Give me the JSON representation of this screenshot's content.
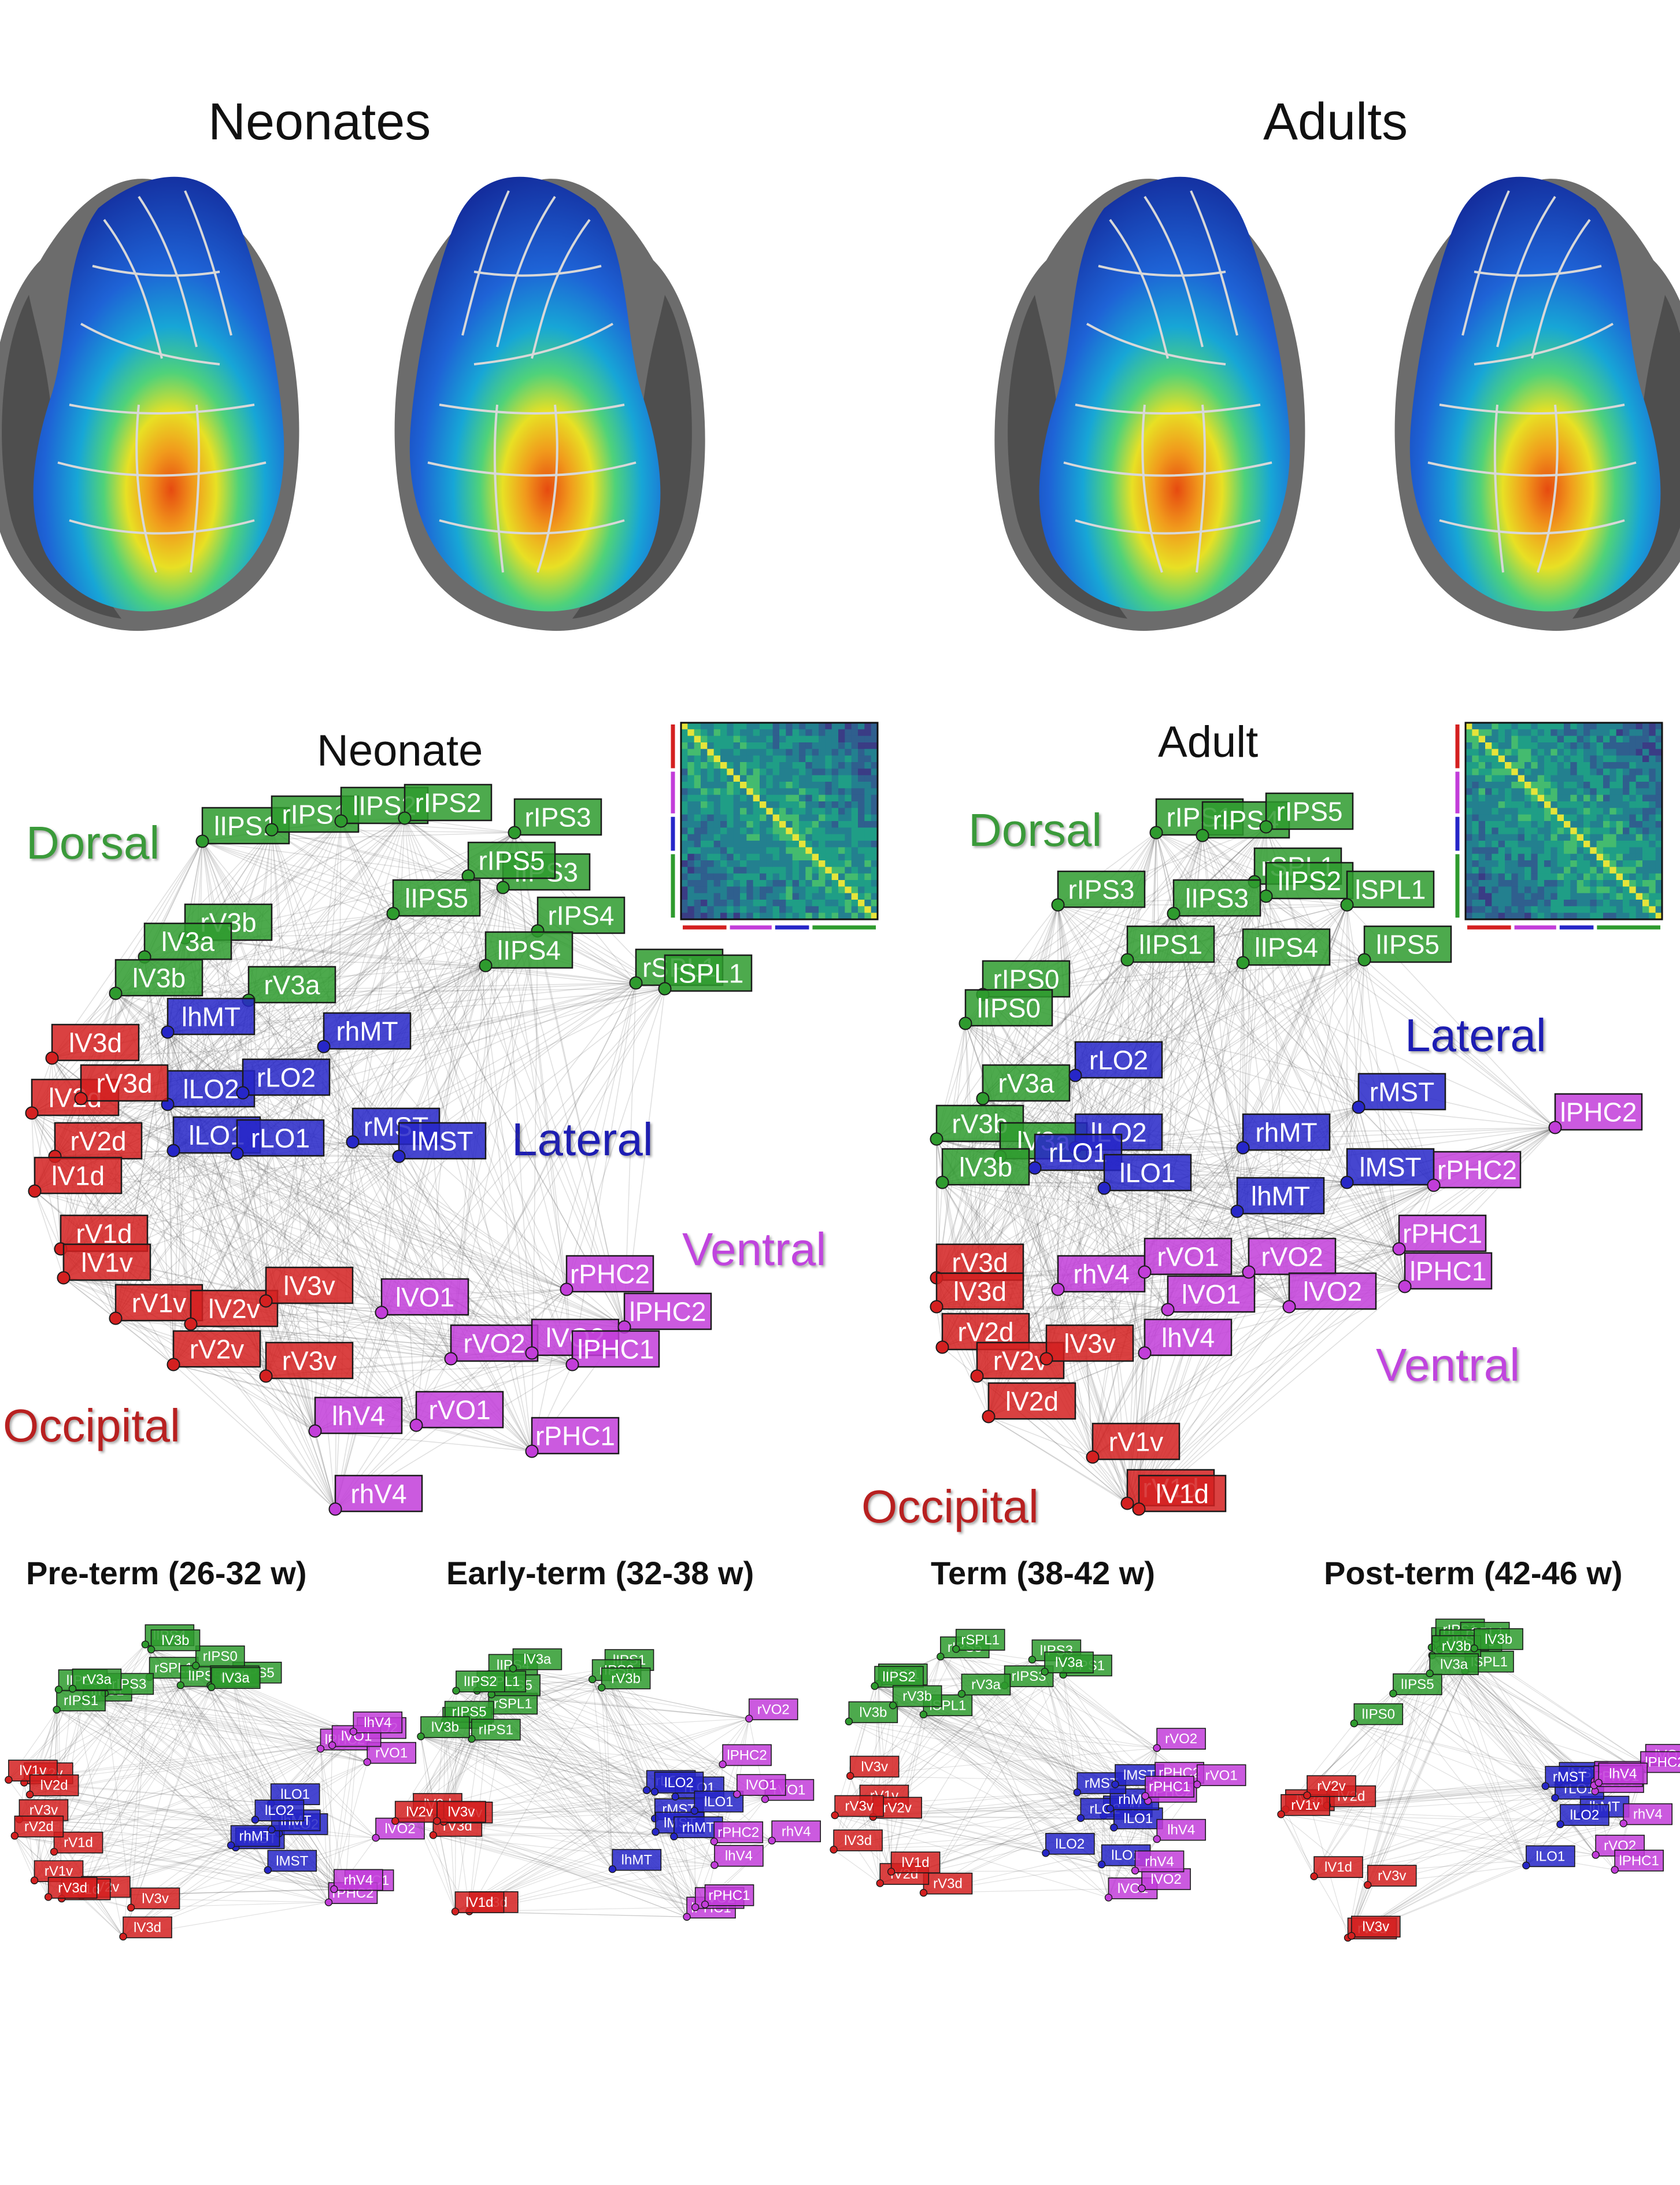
{
  "brains": {
    "neonates_title": "Neonates",
    "adults_title": "Adults"
  },
  "colors": {
    "Dorsal": "#2e9b2e",
    "Lateral": "#2626c8",
    "Ventral": "#c23dd9",
    "Occipital": "#d42020"
  },
  "networks": {
    "neonate": {
      "title": "Neonate",
      "group_labels": {
        "dorsal": "Dorsal",
        "lateral": "Lateral",
        "ventral": "Ventral",
        "occipital": "Occipital"
      },
      "nodes": [
        {
          "label": "lIPS1",
          "group": "Dorsal"
        },
        {
          "label": "rIPS1",
          "group": "Dorsal"
        },
        {
          "label": "lIPS2",
          "group": "Dorsal"
        },
        {
          "label": "rIPS2",
          "group": "Dorsal"
        },
        {
          "label": "rIPS3",
          "group": "Dorsal"
        },
        {
          "label": "lIPS3",
          "group": "Dorsal"
        },
        {
          "label": "rIPS5",
          "group": "Dorsal"
        },
        {
          "label": "lIPS5",
          "group": "Dorsal"
        },
        {
          "label": "rIPS4",
          "group": "Dorsal"
        },
        {
          "label": "lIPS4",
          "group": "Dorsal"
        },
        {
          "label": "rSPL1",
          "group": "Dorsal"
        },
        {
          "label": "lSPL1",
          "group": "Dorsal"
        },
        {
          "label": "rV3b",
          "group": "Dorsal"
        },
        {
          "label": "lV3a",
          "group": "Dorsal"
        },
        {
          "label": "lV3b",
          "group": "Dorsal"
        },
        {
          "label": "rV3a",
          "group": "Dorsal"
        },
        {
          "label": "lhMT",
          "group": "Lateral"
        },
        {
          "label": "rhMT",
          "group": "Lateral"
        },
        {
          "label": "lLO2",
          "group": "Lateral"
        },
        {
          "label": "rLO2",
          "group": "Lateral"
        },
        {
          "label": "lLO1",
          "group": "Lateral"
        },
        {
          "label": "rLO1",
          "group": "Lateral"
        },
        {
          "label": "rMST",
          "group": "Lateral"
        },
        {
          "label": "lMST",
          "group": "Lateral"
        },
        {
          "label": "lV3d",
          "group": "Occipital"
        },
        {
          "label": "lV2d",
          "group": "Occipital"
        },
        {
          "label": "rV3d",
          "group": "Occipital"
        },
        {
          "label": "rV2d",
          "group": "Occipital"
        },
        {
          "label": "lV1d",
          "group": "Occipital"
        },
        {
          "label": "rV1d",
          "group": "Occipital"
        },
        {
          "label": "lV1v",
          "group": "Occipital"
        },
        {
          "label": "rV1v",
          "group": "Occipital"
        },
        {
          "label": "lV2v",
          "group": "Occipital"
        },
        {
          "label": "rV2v",
          "group": "Occipital"
        },
        {
          "label": "lV3v",
          "group": "Occipital"
        },
        {
          "label": "rV3v",
          "group": "Occipital"
        },
        {
          "label": "lVO1",
          "group": "Ventral"
        },
        {
          "label": "rVO2",
          "group": "Ventral"
        },
        {
          "label": "lVO2",
          "group": "Ventral"
        },
        {
          "label": "rPHC2",
          "group": "Ventral"
        },
        {
          "label": "lPHC2",
          "group": "Ventral"
        },
        {
          "label": "lPHC1",
          "group": "Ventral"
        },
        {
          "label": "lhV4",
          "group": "Ventral"
        },
        {
          "label": "rVO1",
          "group": "Ventral"
        },
        {
          "label": "rPHC1",
          "group": "Ventral"
        },
        {
          "label": "rhV4",
          "group": "Ventral"
        }
      ]
    },
    "adult": {
      "title": "Adult",
      "group_labels": {
        "dorsal": "Dorsal",
        "lateral": "Lateral",
        "ventral": "Ventral",
        "occipital": "Occipital"
      },
      "nodes": [
        {
          "label": "rIPS1",
          "group": "Dorsal"
        },
        {
          "label": "rIPS4",
          "group": "Dorsal"
        },
        {
          "label": "rIPS5",
          "group": "Dorsal"
        },
        {
          "label": "rSPL1",
          "group": "Dorsal"
        },
        {
          "label": "lIPS2",
          "group": "Dorsal"
        },
        {
          "label": "lSPL1",
          "group": "Dorsal"
        },
        {
          "label": "rIPS3",
          "group": "Dorsal"
        },
        {
          "label": "lIPS3",
          "group": "Dorsal"
        },
        {
          "label": "lIPS1",
          "group": "Dorsal"
        },
        {
          "label": "lIPS4",
          "group": "Dorsal"
        },
        {
          "label": "lIPS5",
          "group": "Dorsal"
        },
        {
          "label": "rIPS0",
          "group": "Dorsal"
        },
        {
          "label": "lIPS0",
          "group": "Dorsal"
        },
        {
          "label": "rV3a",
          "group": "Dorsal"
        },
        {
          "label": "rV3b",
          "group": "Dorsal"
        },
        {
          "label": "lV3a",
          "group": "Dorsal"
        },
        {
          "label": "lV3b",
          "group": "Dorsal"
        },
        {
          "label": "rLO2",
          "group": "Lateral"
        },
        {
          "label": "rMST",
          "group": "Lateral"
        },
        {
          "label": "lLO2",
          "group": "Lateral"
        },
        {
          "label": "rLO1",
          "group": "Lateral"
        },
        {
          "label": "lLO1",
          "group": "Lateral"
        },
        {
          "label": "rhMT",
          "group": "Lateral"
        },
        {
          "label": "lMST",
          "group": "Lateral"
        },
        {
          "label": "lhMT",
          "group": "Lateral"
        },
        {
          "label": "rV3d",
          "group": "Occipital"
        },
        {
          "label": "lV3d",
          "group": "Occipital"
        },
        {
          "label": "rV2d",
          "group": "Occipital"
        },
        {
          "label": "rV2v",
          "group": "Occipital"
        },
        {
          "label": "lV3v",
          "group": "Occipital"
        },
        {
          "label": "lV2d",
          "group": "Occipital"
        },
        {
          "label": "rV1v",
          "group": "Occipital"
        },
        {
          "label": "rV1d",
          "group": "Occipital"
        },
        {
          "label": "lV1d",
          "group": "Occipital"
        },
        {
          "label": "rhV4",
          "group": "Ventral"
        },
        {
          "label": "rVO1",
          "group": "Ventral"
        },
        {
          "label": "lVO1",
          "group": "Ventral"
        },
        {
          "label": "rVO2",
          "group": "Ventral"
        },
        {
          "label": "lVO2",
          "group": "Ventral"
        },
        {
          "label": "lhV4",
          "group": "Ventral"
        },
        {
          "label": "rPHC1",
          "group": "Ventral"
        },
        {
          "label": "lPHC1",
          "group": "Ventral"
        },
        {
          "label": "rPHC2",
          "group": "Ventral"
        },
        {
          "label": "lPHC2",
          "group": "Ventral"
        }
      ]
    }
  },
  "age_groups": [
    {
      "label": "Pre-term (26-32 w)",
      "nodes": [
        "rSPL1",
        "lIPS1",
        "rIPS5",
        "lIPS4",
        "rIPS3",
        "lIPS5",
        "rIPS1",
        "rIPS0",
        "lIPS0",
        "lV3b",
        "rV3b",
        "lV3a",
        "rV3a",
        "rV2v",
        "lV1v",
        "rV1v",
        "lV2v",
        "rV3v",
        "rV1d",
        "lV1d",
        "rV2d",
        "lV2d",
        "rV3d",
        "lV3d",
        "lMST",
        "rMST",
        "lLO1",
        "rLO2",
        "rhMT",
        "lhMT",
        "lLO2",
        "lPHC1",
        "lPHC2",
        "rPHC2",
        "rVO2",
        "lVO2",
        "rVO1",
        "lVO1",
        "lV3v",
        "rhV4",
        "lhV4"
      ]
    },
    {
      "label": "Early-term (32-38 w)",
      "nodes": [
        "lIPS4",
        "rSPL1",
        "lIPS5",
        "rIPS4",
        "lSPL1",
        "lIPS1",
        "rIPS5",
        "rIPS1",
        "lIPS2",
        "rIPS0",
        "lV3b",
        "rV3b",
        "lV3a",
        "rMST",
        "lhMT",
        "lMST",
        "rhMT",
        "rLO2",
        "rLO1",
        "rV3d",
        "lV3d",
        "lV2d",
        "lV1d",
        "lLO2",
        "lV2v",
        "rV3v",
        "lV3v",
        "rVO1",
        "lLO1",
        "rPHC2",
        "lPHC1",
        "lPHC2",
        "rVO2",
        "lVO2",
        "rPHC1",
        "lVO1",
        "rhV4",
        "lhV4"
      ]
    },
    {
      "label": "Term (38-42 w)",
      "nodes": [
        "lIPS3",
        "rIPS3",
        "lIPS1",
        "rIPS1",
        "lIPS2",
        "rIPS5",
        "rSPL1",
        "lSPL1",
        "lV3b",
        "lV3a",
        "rV3b",
        "lhMT",
        "rLO2",
        "lLO1",
        "rV3a",
        "rhMT",
        "rMST",
        "lMST",
        "lLO2",
        "lLO1",
        "rV3d",
        "lV3d",
        "lV2d",
        "lV1d",
        "rV1v",
        "rV2v",
        "lV3v",
        "rV3v",
        "lVO1",
        "rVO2",
        "lVO2",
        "lPHC2",
        "rPHC2",
        "rVO1",
        "rPHC1",
        "rhV4",
        "lhV4"
      ]
    },
    {
      "label": "Post-term (42-46 w)",
      "nodes": [
        "rIPS3",
        "lIPS3",
        "rIPS1",
        "lIPS5",
        "rSPL1",
        "lSPL1",
        "rIPS0",
        "lIPS0",
        "rV3b",
        "lV3b",
        "lhMT",
        "lV3a",
        "rLO1",
        "lLO2",
        "lMST",
        "rMST",
        "lLO1",
        "rV3d",
        "lV3d",
        "lV2d",
        "lV1d",
        "rV1v",
        "rV2v",
        "lV3v",
        "rV3v",
        "lVO1",
        "rVO2",
        "lPHC1",
        "rPHC2",
        "lPHC2",
        "rVO1",
        "rPHC1",
        "lhV4",
        "rhV4"
      ]
    }
  ]
}
